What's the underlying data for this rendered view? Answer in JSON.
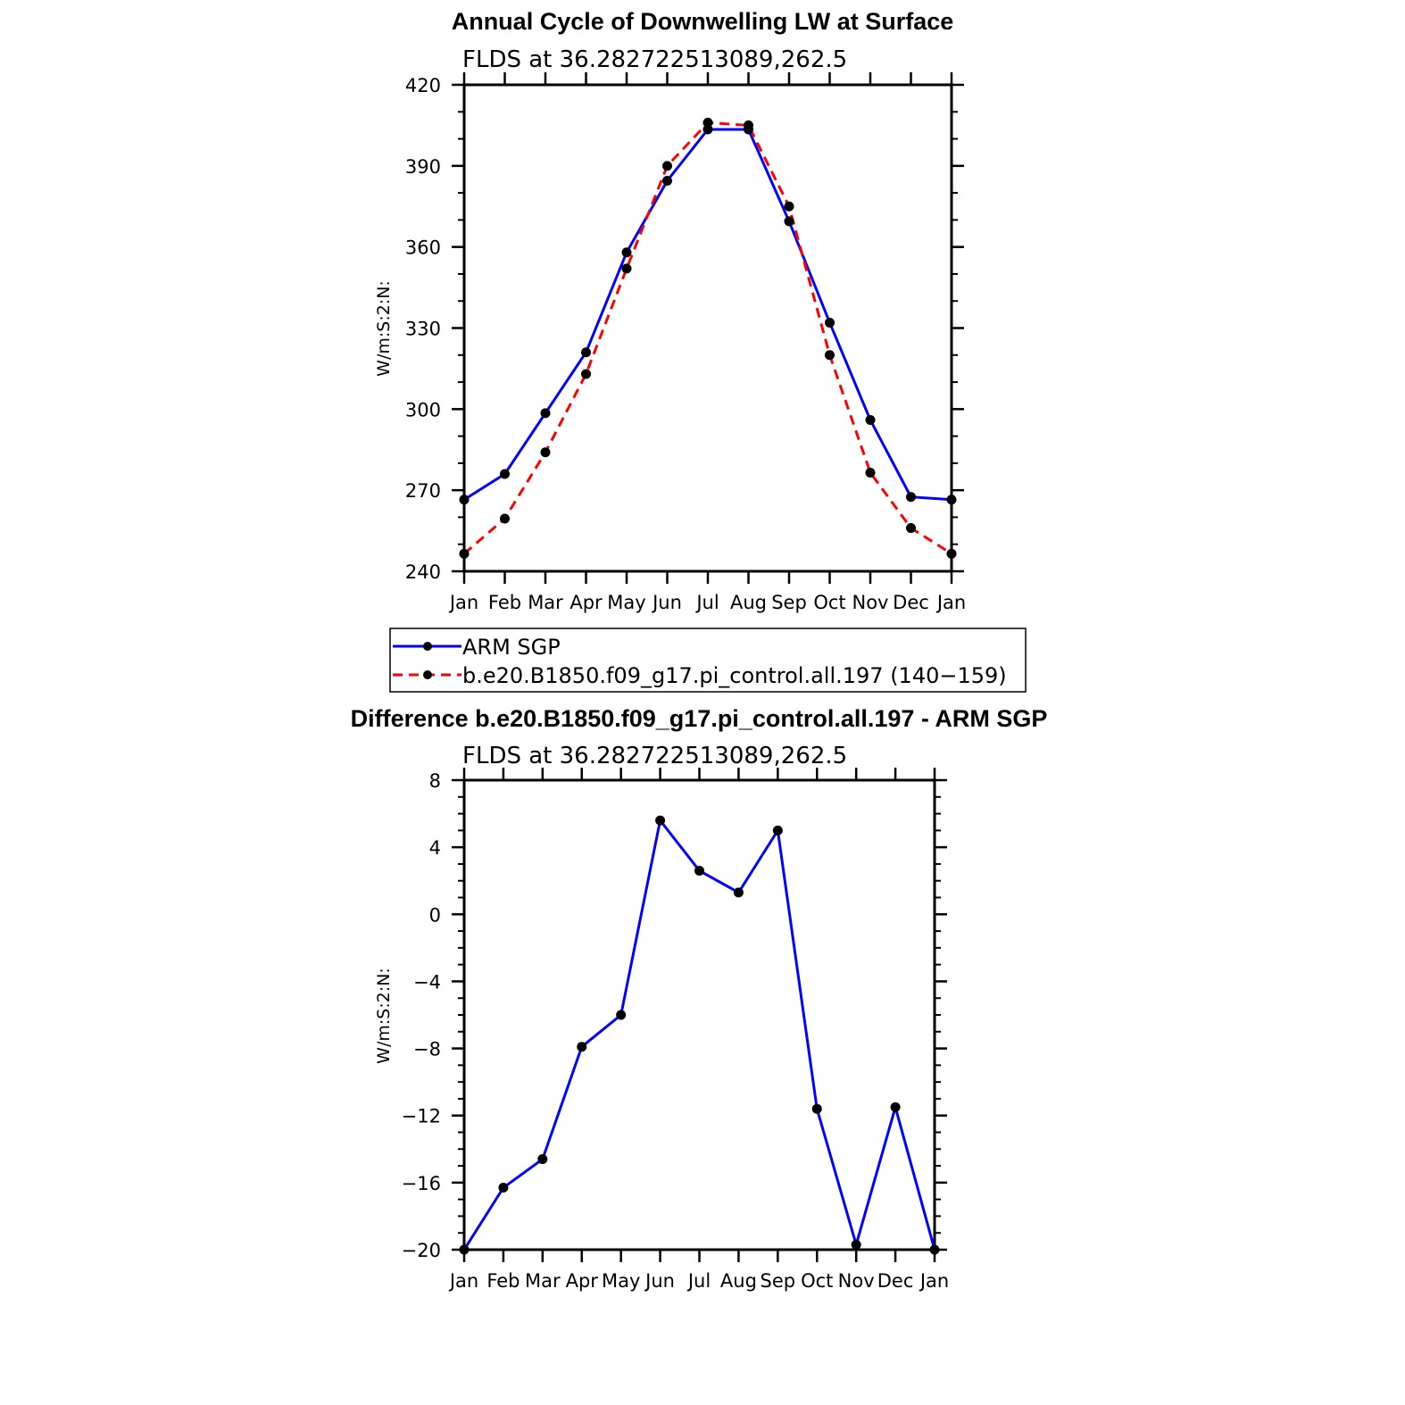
{
  "colors": {
    "obs": "#0000ff",
    "model": "#ff0000",
    "marker": "#000000"
  },
  "chart_data": [
    {
      "type": "line",
      "title": "Annual Cycle of Downwelling LW at Surface",
      "subtitle": "FLDS at 36.282722513089,262.5",
      "ylabel": "W/m:S:2:N:",
      "categories": [
        "Jan",
        "Feb",
        "Mar",
        "Apr",
        "May",
        "Jun",
        "Jul",
        "Aug",
        "Sep",
        "Oct",
        "Nov",
        "Dec",
        "Jan"
      ],
      "ylim": [
        240,
        420
      ],
      "yticks": [
        240,
        270,
        300,
        330,
        360,
        390,
        420
      ],
      "yminor_step": 10,
      "series": [
        {
          "name": "ARM SGP",
          "color": "#0000ff",
          "dash": "solid",
          "values": [
            266.5,
            276,
            298.5,
            321,
            358,
            384.5,
            403.5,
            403.5,
            369.5,
            332,
            296,
            267.5,
            266.5
          ]
        },
        {
          "name": "b.e20.B1850.f09_g17.pi_control.all.197 (140−159)",
          "color": "#ff0000",
          "dash": "dashed",
          "values": [
            246.5,
            259.5,
            284,
            313,
            352,
            390,
            406,
            405,
            375,
            320,
            276.5,
            256,
            246.5
          ]
        }
      ],
      "legend": "below"
    },
    {
      "type": "line",
      "title": "Difference b.e20.B1850.f09_g17.pi_control.all.197 - ARM SGP",
      "subtitle": "FLDS at 36.282722513089,262.5",
      "ylabel": "W/m:S:2:N:",
      "categories": [
        "Jan",
        "Feb",
        "Mar",
        "Apr",
        "May",
        "Jun",
        "Jul",
        "Aug",
        "Sep",
        "Oct",
        "Nov",
        "Dec",
        "Jan"
      ],
      "ylim": [
        -20,
        8
      ],
      "yticks": [
        -20,
        -16,
        -12,
        -8,
        -4,
        0,
        4,
        8
      ],
      "ytick_labels": [
        "−20",
        "−16",
        "−12",
        "−8",
        "−4",
        "0",
        "4",
        "8"
      ],
      "yminor_step": 1,
      "series": [
        {
          "name": "",
          "color": "#0000ff",
          "dash": "solid",
          "values": [
            -20,
            -16.3,
            -14.6,
            -7.9,
            -6,
            5.6,
            2.6,
            1.3,
            5,
            -11.6,
            -19.7,
            -11.5,
            -20
          ]
        }
      ]
    }
  ]
}
